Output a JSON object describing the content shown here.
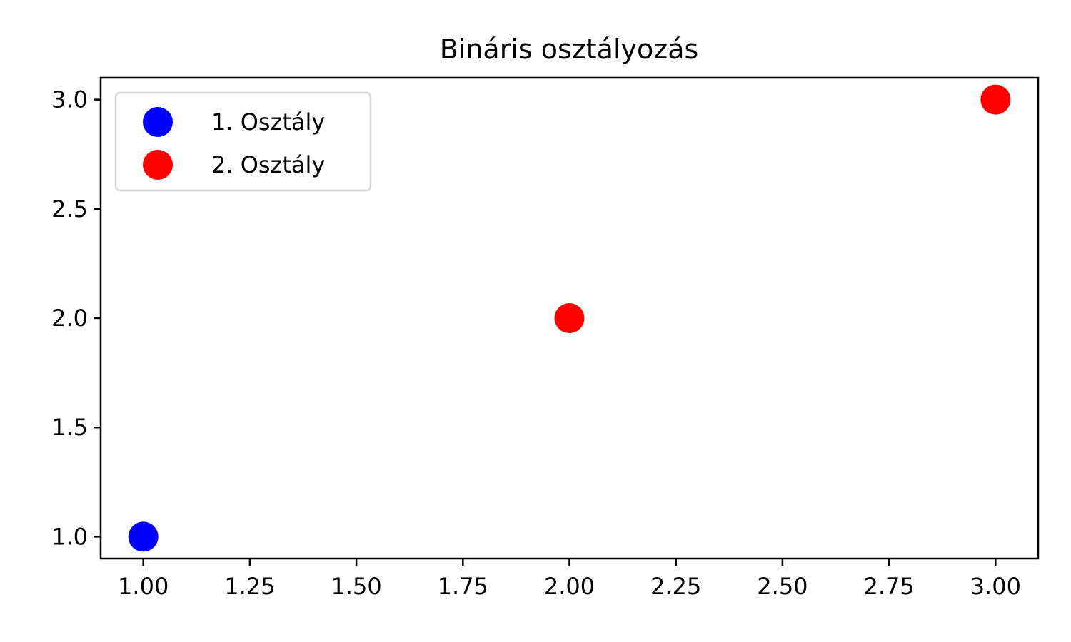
{
  "chart_data": {
    "type": "scatter",
    "title": "Bináris osztályozás",
    "xlabel": "",
    "ylabel": "",
    "xlim": [
      0.9,
      3.1
    ],
    "ylim": [
      0.9,
      3.1
    ],
    "x_ticks": [
      1.0,
      1.25,
      1.5,
      1.75,
      2.0,
      2.25,
      2.5,
      2.75,
      3.0
    ],
    "x_tick_labels": [
      "1.00",
      "1.25",
      "1.50",
      "1.75",
      "2.00",
      "2.25",
      "2.50",
      "2.75",
      "3.00"
    ],
    "y_ticks": [
      1.0,
      1.5,
      2.0,
      2.5,
      3.0
    ],
    "y_tick_labels": [
      "1.0",
      "1.5",
      "2.0",
      "2.5",
      "3.0"
    ],
    "grid": false,
    "legend_position": "upper-left",
    "series": [
      {
        "name": "1. Osztály",
        "color": "#0000ff",
        "points": [
          {
            "x": 1.0,
            "y": 1.0
          }
        ]
      },
      {
        "name": "2. Osztály",
        "color": "#ff0000",
        "points": [
          {
            "x": 2.0,
            "y": 2.0
          },
          {
            "x": 3.0,
            "y": 3.0
          }
        ]
      }
    ]
  }
}
